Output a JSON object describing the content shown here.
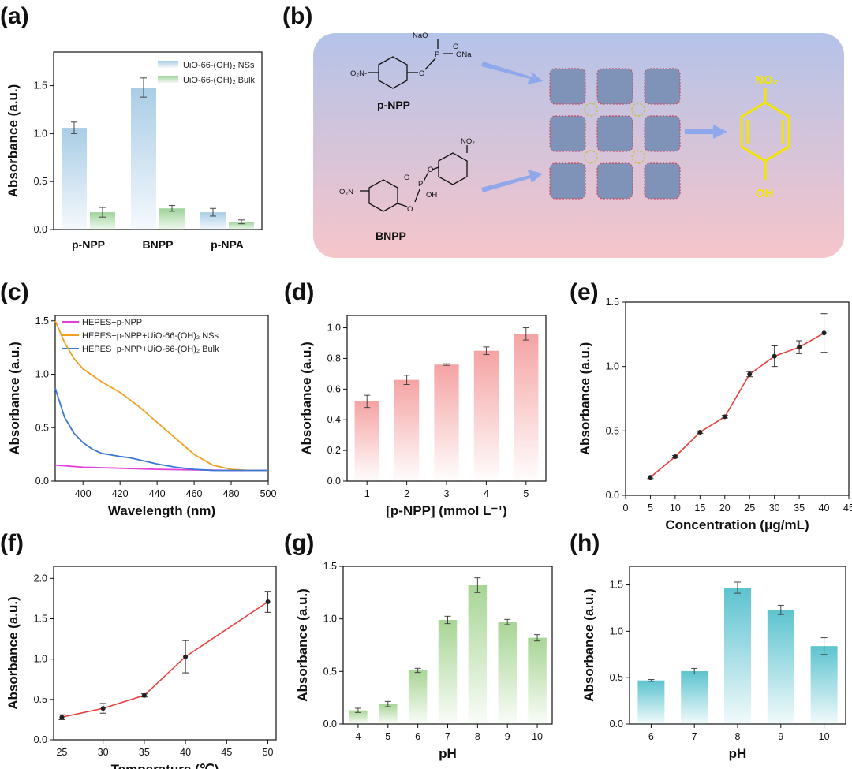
{
  "panel_labels": [
    "(a)",
    "(b)",
    "(c)",
    "(d)",
    "(e)",
    "(f)",
    "(g)",
    "(h)"
  ],
  "colors": {
    "ns_blue": "#a9cde6",
    "bulk_green": "#9fd39a",
    "pink_bar": "#f5a3a3",
    "green_bar": "#a8d595",
    "cyan_bar": "#5cc3cf",
    "line_red": "#e8403a",
    "magenta": "#e040d8",
    "orange": "#f0a020",
    "blue": "#3a78d8",
    "scheme_top": "#b6c4e8",
    "scheme_bottom": "#f4c6cc",
    "product_yellow": "#f2e600"
  },
  "scheme": {
    "reactant1": "p-NPP",
    "reactant2": "BNPP",
    "nao": "NaO",
    "ona": "ONa",
    "p": "P",
    "o": "O",
    "oh": "OH",
    "o2n": "O₂N-",
    "no2": "NO₂",
    "product_top": "NO₂",
    "product_bottom": "OH"
  },
  "chart_data": [
    {
      "id": "a",
      "type": "bar",
      "categories": [
        "p-NPP",
        "BNPP",
        "p-NPA"
      ],
      "series": [
        {
          "name": "UiO-66-(OH)₂ NSs",
          "values": [
            1.06,
            1.48,
            0.18
          ],
          "errors": [
            0.06,
            0.1,
            0.04
          ]
        },
        {
          "name": "UiO-66-(OH)₂ Bulk",
          "values": [
            0.18,
            0.22,
            0.08
          ],
          "errors": [
            0.05,
            0.03,
            0.02
          ]
        }
      ],
      "ylabel": "Absorbance (a.u.)",
      "xlabel": "",
      "ylim": [
        0,
        1.85
      ],
      "yticks": [
        "0.0",
        "0.5",
        "1.0",
        "1.5"
      ],
      "legend": "top-right"
    },
    {
      "id": "c",
      "type": "line",
      "xlabel": "Wavelength (nm)",
      "ylabel": "Absorbance (a.u.)",
      "xlim": [
        385,
        500
      ],
      "ylim": [
        0,
        1.55
      ],
      "xticks": [
        "400",
        "420",
        "440",
        "460",
        "480",
        "500"
      ],
      "yticks": [
        "0.0",
        "0.5",
        "1.0",
        "1.5"
      ],
      "series": [
        {
          "name": "HEPES+p-NPP",
          "x": [
            385,
            400,
            420,
            440,
            460,
            480,
            500
          ],
          "y": [
            0.15,
            0.13,
            0.12,
            0.11,
            0.105,
            0.1,
            0.1
          ]
        },
        {
          "name": "HEPES+p-NPP+UiO-66-(OH)₂ NSs",
          "x": [
            385,
            390,
            395,
            400,
            410,
            420,
            430,
            440,
            450,
            460,
            470,
            480,
            490,
            500
          ],
          "y": [
            1.5,
            1.3,
            1.15,
            1.05,
            0.93,
            0.83,
            0.7,
            0.55,
            0.4,
            0.25,
            0.15,
            0.11,
            0.1,
            0.1
          ]
        },
        {
          "name": "HEPES+p-NPP+UiO-66-(OH)₂ Bulk",
          "x": [
            385,
            390,
            395,
            400,
            405,
            410,
            420,
            425,
            430,
            440,
            450,
            460,
            470,
            480,
            500
          ],
          "y": [
            0.87,
            0.6,
            0.45,
            0.36,
            0.3,
            0.26,
            0.23,
            0.22,
            0.2,
            0.16,
            0.13,
            0.11,
            0.1,
            0.1,
            0.1
          ]
        }
      ],
      "legend": "top-right"
    },
    {
      "id": "d",
      "type": "bar",
      "categories": [
        "1",
        "2",
        "3",
        "4",
        "5"
      ],
      "values": [
        0.52,
        0.66,
        0.76,
        0.85,
        0.96
      ],
      "errors": [
        0.04,
        0.03,
        0.005,
        0.025,
        0.04
      ],
      "xlabel": "[p-NPP] (mmol L⁻¹)",
      "ylabel": "Absorbance (a.u.)",
      "ylim": [
        0,
        1.08
      ],
      "yticks": [
        "0.0",
        "0.2",
        "0.4",
        "0.6",
        "0.8",
        "1.0"
      ]
    },
    {
      "id": "e",
      "type": "line",
      "x": [
        5,
        10,
        15,
        20,
        25,
        30,
        35,
        40
      ],
      "y": [
        0.14,
        0.3,
        0.49,
        0.61,
        0.94,
        1.08,
        1.15,
        1.26
      ],
      "errors": [
        0.01,
        0.01,
        0.01,
        0.01,
        0.02,
        0.08,
        0.05,
        0.15
      ],
      "xlabel": "Concentration (μg/mL)",
      "ylabel": "Absorbance (a.u.)",
      "xlim": [
        0,
        45
      ],
      "ylim": [
        0,
        1.5
      ],
      "xticks": [
        "0",
        "5",
        "10",
        "15",
        "20",
        "25",
        "30",
        "35",
        "40",
        "45"
      ],
      "yticks": [
        "0.0",
        "0.5",
        "1.0",
        "1.5"
      ]
    },
    {
      "id": "f",
      "type": "line",
      "x": [
        25,
        30,
        35,
        40,
        50
      ],
      "y": [
        0.28,
        0.39,
        0.55,
        1.03,
        1.71
      ],
      "errors": [
        0.03,
        0.06,
        0.02,
        0.2,
        0.13
      ],
      "xlabel": "Temperature (℃)",
      "ylabel": "Absorbance (a.u.)",
      "xlim": [
        24,
        51
      ],
      "ylim": [
        0,
        2.15
      ],
      "xticks": [
        "25",
        "30",
        "35",
        "40",
        "45",
        "50"
      ],
      "yticks": [
        "0.0",
        "0.5",
        "1.0",
        "1.5",
        "2.0"
      ]
    },
    {
      "id": "g",
      "type": "bar",
      "categories": [
        "4",
        "5",
        "6",
        "7",
        "8",
        "9",
        "10"
      ],
      "values": [
        0.13,
        0.19,
        0.51,
        0.99,
        1.32,
        0.97,
        0.82
      ],
      "errors": [
        0.02,
        0.025,
        0.02,
        0.035,
        0.07,
        0.025,
        0.03
      ],
      "xlabel": "pH",
      "ylabel": "Absorbance (a.u.)",
      "ylim": [
        0,
        1.5
      ],
      "yticks": [
        "0.0",
        "0.5",
        "1.0",
        "1.5"
      ]
    },
    {
      "id": "h",
      "type": "bar",
      "categories": [
        "6",
        "7",
        "8",
        "9",
        "10"
      ],
      "values": [
        0.47,
        0.57,
        1.47,
        1.23,
        0.84
      ],
      "errors": [
        0.01,
        0.03,
        0.06,
        0.05,
        0.09
      ],
      "xlabel": "pH",
      "ylabel": "Absorbance (a.u.)",
      "ylim": [
        0,
        1.7
      ],
      "yticks": [
        "0.0",
        "0.5",
        "1.0",
        "1.5"
      ]
    }
  ]
}
